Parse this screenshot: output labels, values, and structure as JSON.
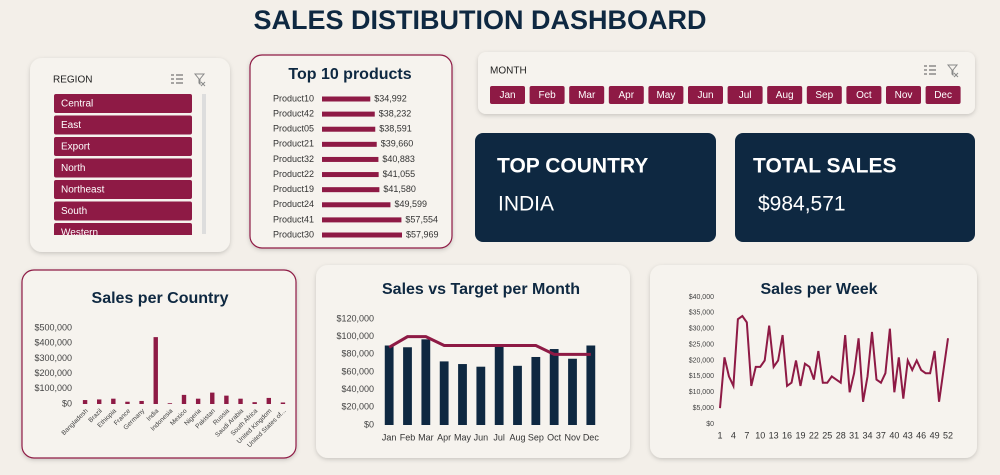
{
  "header": {
    "title": "SALES DISTIBUTION DASHBOARD"
  },
  "region_slicer": {
    "label": "REGION",
    "items": [
      "Central",
      "East",
      "Export",
      "North",
      "Northeast",
      "South",
      "Western"
    ]
  },
  "month_slicer": {
    "label": "MONTH",
    "items": [
      "Jan",
      "Feb",
      "Mar",
      "Apr",
      "May",
      "Jun",
      "Jul",
      "Aug",
      "Sep",
      "Oct",
      "Nov",
      "Dec"
    ]
  },
  "kpis": [
    {
      "label": "TOP COUNTRY",
      "value": "INDIA"
    },
    {
      "label": "TOTAL SALES",
      "value": "$984,571"
    }
  ],
  "chart_data": [
    {
      "type": "bar",
      "orientation": "horizontal",
      "title": "Top 10 products",
      "color": "#8e1a45",
      "categories": [
        "Product10",
        "Product42",
        "Product05",
        "Product21",
        "Product32",
        "Product22",
        "Product19",
        "Product24",
        "Product41",
        "Product30"
      ],
      "values": [
        34992,
        38232,
        38591,
        39660,
        40883,
        41055,
        41580,
        49599,
        57554,
        57969
      ],
      "value_labels": [
        "$34,992",
        "$38,232",
        "$38,591",
        "$39,660",
        "$40,883",
        "$41,055",
        "$41,580",
        "$49,599",
        "$57,554",
        "$57,969"
      ]
    },
    {
      "type": "bar",
      "title": "Sales per Country",
      "color": "#8e1a45",
      "categories": [
        "Bangladesh",
        "Brazil",
        "Ethiopia",
        "France",
        "Germany",
        "India",
        "Indonesia",
        "Mexico",
        "Nigeria",
        "Pakistan",
        "Russia",
        "Saudi Arabia",
        "South Africa",
        "United Kingdom",
        "United States of..."
      ],
      "values": [
        26000,
        30000,
        35000,
        15000,
        20000,
        440000,
        5000,
        60000,
        35000,
        75000,
        55000,
        35000,
        12000,
        40000,
        10000
      ],
      "ylim": [
        0,
        500000
      ],
      "yticks": [
        {
          "value": 0,
          "label": "$0"
        },
        {
          "value": 100000,
          "label": "$100,000"
        },
        {
          "value": 200000,
          "label": "$200,000"
        },
        {
          "value": 300000,
          "label": "$300,000"
        },
        {
          "value": 400000,
          "label": "$400,000"
        },
        {
          "value": 500000,
          "label": "$500,000"
        }
      ]
    },
    {
      "type": "combo",
      "title": "Sales vs Target per Month",
      "categories": [
        "Jan",
        "Feb",
        "Mar",
        "Apr",
        "May",
        "Jun",
        "Jul",
        "Aug",
        "Sep",
        "Oct",
        "Nov",
        "Dec"
      ],
      "series": [
        {
          "type": "bar",
          "color": "#0e2841",
          "values": [
            90000,
            88000,
            97000,
            72000,
            69000,
            66000,
            91000,
            67000,
            77000,
            86000,
            75000,
            90000
          ]
        },
        {
          "type": "line",
          "color": "#8e1a45",
          "values": [
            88000,
            100000,
            100000,
            90000,
            90000,
            90000,
            90000,
            90000,
            90000,
            80000,
            80000,
            80000
          ]
        }
      ],
      "ylim": [
        0,
        120000
      ],
      "yticks": [
        {
          "value": 0,
          "label": "$0"
        },
        {
          "value": 20000,
          "label": "$20,000"
        },
        {
          "value": 40000,
          "label": "$40,000"
        },
        {
          "value": 60000,
          "label": "$60,000"
        },
        {
          "value": 80000,
          "label": "$80,000"
        },
        {
          "value": 100000,
          "label": "$100,000"
        },
        {
          "value": 120000,
          "label": "$120,000"
        }
      ]
    },
    {
      "type": "line",
      "title": "Sales per Week",
      "color": "#8e1a45",
      "x": [
        1,
        2,
        3,
        4,
        5,
        6,
        7,
        8,
        9,
        10,
        11,
        12,
        13,
        14,
        15,
        16,
        17,
        18,
        19,
        20,
        21,
        22,
        23,
        24,
        25,
        26,
        27,
        28,
        29,
        30,
        31,
        32,
        33,
        34,
        35,
        36,
        37,
        38,
        39,
        40,
        41,
        42,
        43,
        44,
        45,
        46,
        47,
        48,
        49,
        50,
        51,
        52
      ],
      "values": [
        5000,
        21000,
        15000,
        12000,
        33000,
        34000,
        32000,
        12000,
        18000,
        18000,
        20000,
        31000,
        18000,
        20000,
        28000,
        12000,
        13000,
        20000,
        12000,
        19000,
        18000,
        14000,
        23000,
        13000,
        13000,
        15000,
        14000,
        13000,
        28000,
        10000,
        16000,
        27000,
        7000,
        15000,
        29000,
        14000,
        13000,
        16000,
        30000,
        10000,
        21000,
        8000,
        20000,
        17000,
        20000,
        17000,
        16000,
        16000,
        23000,
        7000,
        17000,
        27000
      ],
      "xlim": [
        1,
        52
      ],
      "xticks": [
        1,
        4,
        7,
        10,
        13,
        16,
        19,
        22,
        25,
        28,
        31,
        34,
        37,
        40,
        43,
        46,
        49,
        52
      ],
      "ylim": [
        0,
        40000
      ],
      "yticks": [
        {
          "value": 0,
          "label": "$0"
        },
        {
          "value": 5000,
          "label": "$5,000"
        },
        {
          "value": 10000,
          "label": "$10,000"
        },
        {
          "value": 15000,
          "label": "$15,000"
        },
        {
          "value": 20000,
          "label": "$20,000"
        },
        {
          "value": 25000,
          "label": "$25,000"
        },
        {
          "value": 30000,
          "label": "$30,000"
        },
        {
          "value": 35000,
          "label": "$35,000"
        },
        {
          "value": 40000,
          "label": "$40,000"
        }
      ]
    }
  ]
}
